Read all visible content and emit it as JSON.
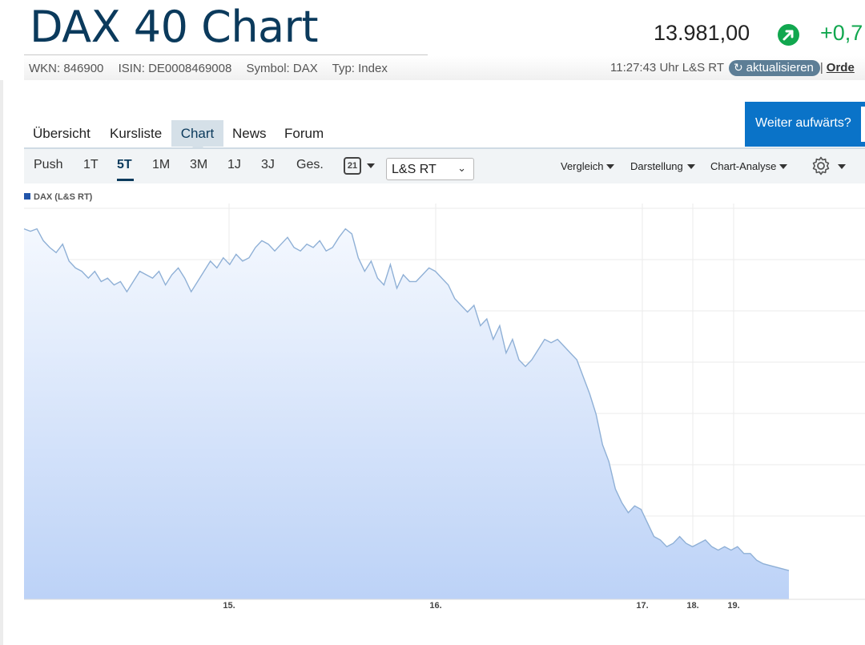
{
  "header": {
    "title": "DAX 40 Chart",
    "price": "13.981,00",
    "change": "+0,7",
    "wkn": "WKN: 846900",
    "isin": "ISIN: DE0008469008",
    "symbol": "Symbol: DAX",
    "type": "Typ: Index",
    "timestamp": "11:27:43 Uhr L&S RT",
    "refresh_label": "aktualisieren",
    "order_label": "Orde",
    "separator": "|"
  },
  "tabs": [
    "Übersicht",
    "Kursliste",
    "Chart",
    "News",
    "Forum"
  ],
  "active_tab": "Chart",
  "promo": "Weiter aufwärts?",
  "toolbar": {
    "ranges": [
      "Push",
      "1T",
      "5T",
      "1M",
      "3M",
      "1J",
      "3J",
      "Ges."
    ],
    "active_range": "5T",
    "calendar_day": "21",
    "exchange": "L&S RT",
    "menus": [
      "Vergleich",
      "Darstellung",
      "Chart-Analyse"
    ]
  },
  "colors": {
    "title": "#0b3a5c",
    "positive": "#11a74f",
    "line": "#8fb0d6",
    "area_top": "#f4f8fe",
    "area_bottom": "#bcd2f7",
    "promo_bg": "#0a73c8",
    "legend_swatch": "#2255aa"
  },
  "icons": {
    "change": "arrow-up-right-icon",
    "refresh": "refresh-icon",
    "calendar": "calendar-icon",
    "settings": "gear-icon"
  },
  "chart_data": {
    "type": "area",
    "legend": [
      "DAX (L&S RT)"
    ],
    "x_ticks": [
      "15.",
      "16.",
      "17.",
      "18.",
      "19."
    ],
    "y_ticks": [],
    "grid": true,
    "series": [
      {
        "name": "DAX (L&S RT)",
        "values": [
          0.985,
          0.978,
          0.985,
          0.95,
          0.93,
          0.915,
          0.94,
          0.89,
          0.87,
          0.86,
          0.84,
          0.86,
          0.83,
          0.84,
          0.82,
          0.83,
          0.8,
          0.83,
          0.86,
          0.85,
          0.84,
          0.86,
          0.82,
          0.85,
          0.87,
          0.84,
          0.8,
          0.83,
          0.86,
          0.89,
          0.87,
          0.9,
          0.88,
          0.91,
          0.89,
          0.9,
          0.93,
          0.95,
          0.94,
          0.92,
          0.94,
          0.96,
          0.93,
          0.92,
          0.94,
          0.93,
          0.95,
          0.92,
          0.93,
          0.96,
          0.985,
          0.97,
          0.9,
          0.86,
          0.89,
          0.84,
          0.82,
          0.88,
          0.81,
          0.85,
          0.83,
          0.83,
          0.85,
          0.87,
          0.86,
          0.84,
          0.82,
          0.78,
          0.76,
          0.74,
          0.76,
          0.7,
          0.72,
          0.66,
          0.7,
          0.62,
          0.66,
          0.6,
          0.58,
          0.6,
          0.63,
          0.66,
          0.65,
          0.66,
          0.64,
          0.62,
          0.6,
          0.55,
          0.5,
          0.44,
          0.35,
          0.3,
          0.22,
          0.18,
          0.15,
          0.17,
          0.16,
          0.12,
          0.08,
          0.07,
          0.05,
          0.06,
          0.08,
          0.06,
          0.05,
          0.06,
          0.07,
          0.05,
          0.04,
          0.05,
          0.04,
          0.05,
          0.03,
          0.03,
          0.01,
          0.0,
          -0.005,
          -0.01,
          -0.015,
          -0.02
        ],
        "note": "placeholder"
      }
    ]
  }
}
